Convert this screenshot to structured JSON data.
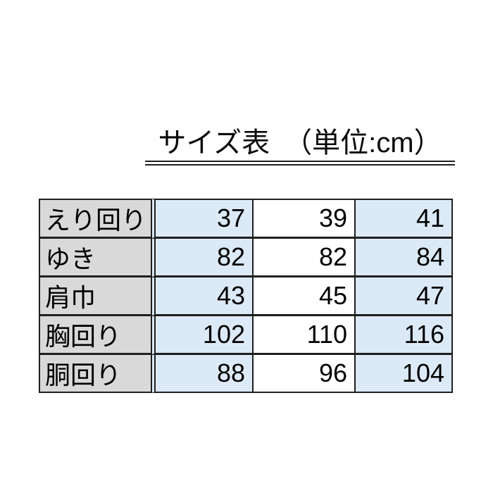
{
  "title": {
    "text": "サイズ表　（単位:cm）"
  },
  "colors": {
    "page_bg": "#ffffff",
    "label_bg": "#d9d9d9",
    "band_bg": "#dce9f6",
    "plain_bg": "#ffffff",
    "border": "#1f1f1f",
    "text": "#000000"
  },
  "chart_data": {
    "type": "table",
    "title": "サイズ表 （単位:cm）",
    "unit": "cm",
    "column_headers": [],
    "row_labels": [
      "えり回り",
      "ゆき",
      "肩巾",
      "胸回り",
      "胴回り"
    ],
    "values": [
      [
        37,
        39,
        41
      ],
      [
        82,
        82,
        84
      ],
      [
        43,
        45,
        47
      ],
      [
        102,
        110,
        116
      ],
      [
        88,
        96,
        104
      ]
    ]
  }
}
